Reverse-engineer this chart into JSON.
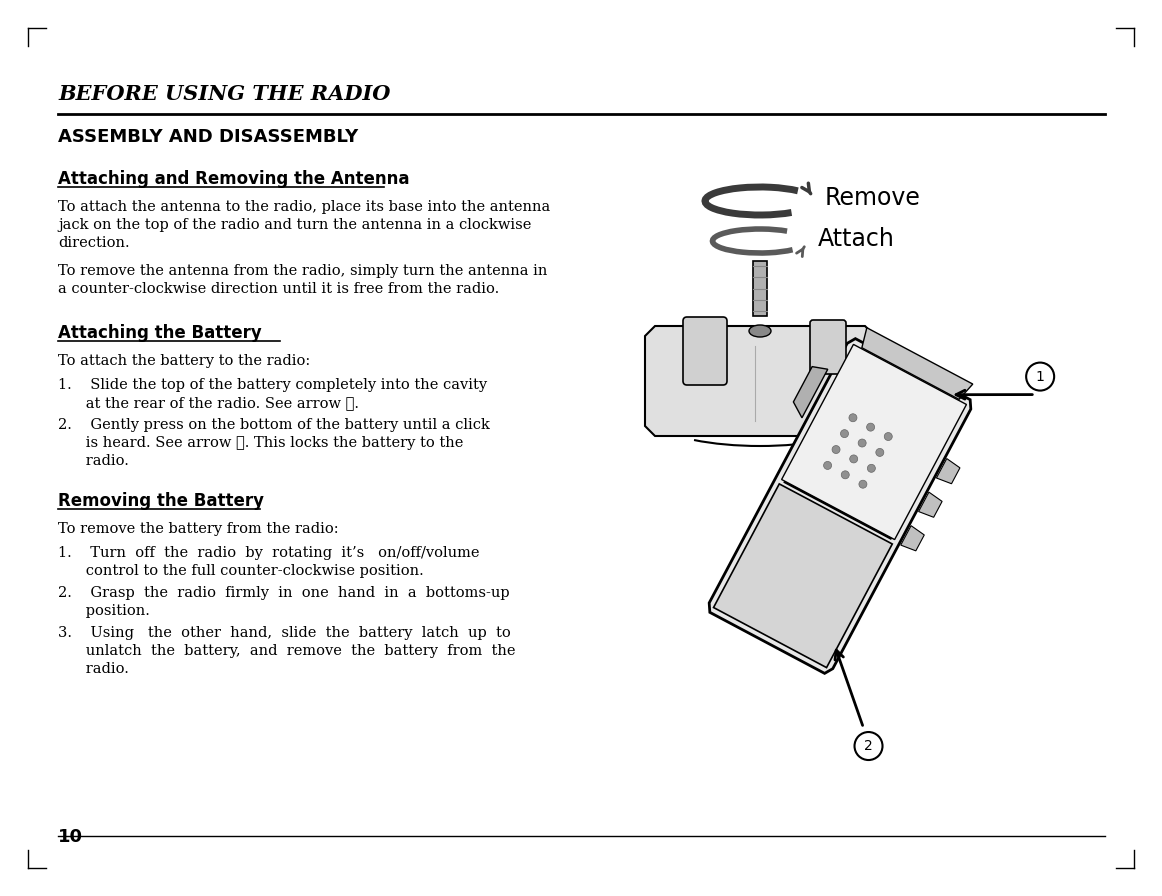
{
  "bg_color": "#ffffff",
  "text_color": "#000000",
  "header_title": "BEFORE USING THE RADIO",
  "section_title": "ASSEMBLY AND DISASSEMBLY",
  "subsection1": "Attaching and Removing the Antenna",
  "para1a": "To attach the antenna to the radio, place its base into the antenna\njack on the top of the radio and turn the antenna in a clockwise\ndirection.",
  "para1b": "To remove the antenna from the radio, simply turn the antenna in\na counter-clockwise direction until it is free from the radio.",
  "subsection2": "Attaching the Battery",
  "para2": "To attach the battery to the radio:",
  "item2_1a": "1.    Slide the top of the battery completely into the cavity",
  "item2_1b": "      at the rear of the radio. See arrow ①.",
  "item2_2a": "2.    Gently press on the bottom of the battery until a click",
  "item2_2b": "      is heard. See arrow ②. This locks the battery to the",
  "item2_2c": "      radio.",
  "subsection3": "Removing the Battery",
  "para3": "To remove the battery from the radio:",
  "item3_1a": "1.    Turn  off  the  radio  by  rotating  it’s   on/off/volume",
  "item3_1b": "      control to the full counter-clockwise position.",
  "item3_2a": "2.    Grasp  the  radio  firmly  in  one  hand  in  a  bottoms-up",
  "item3_2b": "      position.",
  "item3_3a": "3.    Using   the  other  hand,  slide  the  battery  latch  up  to",
  "item3_3b": "      unlatch  the  battery,  and  remove  the  battery  from  the",
  "item3_3c": "      radio.",
  "page_number": "10",
  "remove_label": "Remove",
  "attach_label": "Attach"
}
